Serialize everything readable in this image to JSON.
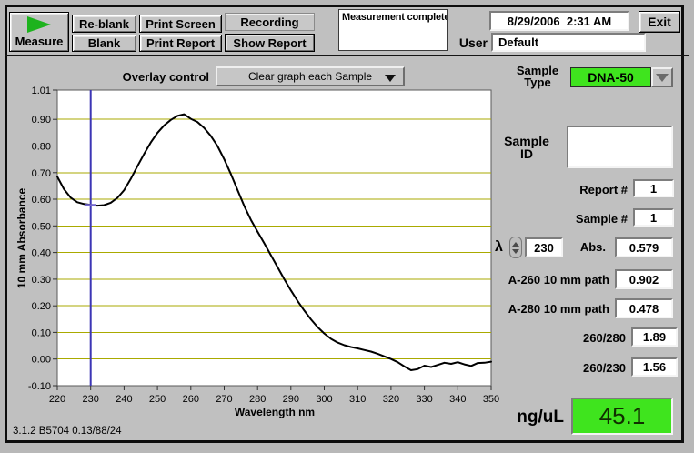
{
  "toolbar": {
    "measure_label": "Measure",
    "reblank_label": "Re-blank",
    "print_screen_label": "Print Screen",
    "recording_label": "Recording",
    "blank_label": "Blank",
    "print_report_label": "Print Report",
    "show_report_label": "Show Report",
    "status_text": "Measurement complete",
    "datetime": "8/29/2006  2:31 AM",
    "exit_label": "Exit",
    "user_label": "User",
    "user_value": "Default"
  },
  "overlay": {
    "label": "Overlay control",
    "selected_value": "Clear graph each Sample"
  },
  "sample_type": {
    "label_line1": "Sample",
    "label_line2": "Type",
    "value": "DNA-50",
    "highlight_color": "#3fe41e"
  },
  "right_panel": {
    "sample_id_label_line1": "Sample",
    "sample_id_label_line2": "ID",
    "sample_id_value": "",
    "report_label": "Report #",
    "report_value": "1",
    "sample_num_label": "Sample #",
    "sample_num_value": "1",
    "lambda_symbol": "λ",
    "lambda_value": "230",
    "abs_label": "Abs.",
    "abs_value": "0.579",
    "a260_label": "A-260 10 mm path",
    "a260_value": "0.902",
    "a280_label": "A-280 10 mm path",
    "a280_value": "0.478",
    "ratio_260_280_label": "260/280",
    "ratio_260_280_value": "1.89",
    "ratio_260_230_label": "260/230",
    "ratio_260_230_value": "1.56",
    "concentration_label": "ng/uL",
    "concentration_value": "45.1",
    "concentration_color": "#3fe41e"
  },
  "footer": {
    "version": "3.1.2 B5704 0.13/88/24"
  },
  "chart_data": {
    "type": "line",
    "title": "",
    "xlabel": "Wavelength nm",
    "ylabel": "10 mm Absorbance",
    "xlim": [
      220,
      350
    ],
    "ylim": [
      -0.1,
      1.01
    ],
    "x_ticks": [
      220,
      230,
      240,
      250,
      260,
      270,
      280,
      290,
      300,
      310,
      320,
      330,
      340,
      350
    ],
    "y_ticks": [
      1.01,
      0.9,
      0.8,
      0.7,
      0.6,
      0.5,
      0.4,
      0.3,
      0.2,
      0.1,
      0.0,
      -0.1
    ],
    "grid": "horizontal",
    "gridline_color": "#aaaa00",
    "plot_bg": "#ffffff",
    "cursor": {
      "x": 230,
      "y": 0.579,
      "color": "#3c35b5",
      "crosshair_color": "#7468cf"
    },
    "series": [
      {
        "name": "UV absorbance spectrum",
        "color": "#000000",
        "x": [
          220,
          222,
          224,
          226,
          228,
          230,
          232,
          234,
          236,
          238,
          240,
          242,
          244,
          246,
          248,
          250,
          252,
          254,
          256,
          258,
          260,
          262,
          264,
          266,
          268,
          270,
          272,
          274,
          276,
          278,
          280,
          282,
          284,
          286,
          288,
          290,
          292,
          294,
          296,
          298,
          300,
          302,
          304,
          306,
          308,
          310,
          312,
          314,
          316,
          318,
          320,
          322,
          324,
          326,
          328,
          330,
          332,
          334,
          336,
          338,
          340,
          342,
          344,
          346,
          348,
          350
        ],
        "y": [
          0.685,
          0.638,
          0.606,
          0.589,
          0.582,
          0.579,
          0.576,
          0.578,
          0.587,
          0.605,
          0.634,
          0.676,
          0.724,
          0.77,
          0.813,
          0.849,
          0.877,
          0.898,
          0.913,
          0.919,
          0.902,
          0.89,
          0.868,
          0.838,
          0.8,
          0.75,
          0.695,
          0.635,
          0.575,
          0.523,
          0.478,
          0.435,
          0.39,
          0.345,
          0.3,
          0.258,
          0.218,
          0.182,
          0.149,
          0.12,
          0.096,
          0.076,
          0.062,
          0.052,
          0.045,
          0.04,
          0.034,
          0.028,
          0.02,
          0.01,
          0.0,
          -0.012,
          -0.028,
          -0.042,
          -0.038,
          -0.025,
          -0.03,
          -0.022,
          -0.014,
          -0.018,
          -0.012,
          -0.02,
          -0.026,
          -0.015,
          -0.014,
          -0.01
        ]
      }
    ]
  }
}
